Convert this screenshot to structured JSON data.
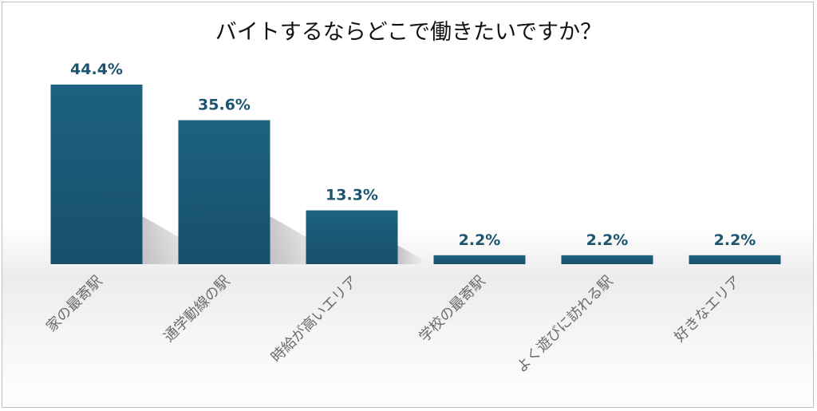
{
  "chart_data": {
    "type": "bar",
    "title": "バイトするならどこで働きたいですか？",
    "categories": [
      "家の最寄駅",
      "通学動線の駅",
      "時給が高いエリア",
      "学校の最寄駅",
      "よく遊びに訪れる駅",
      "好きなエリア"
    ],
    "values": [
      44.4,
      35.6,
      13.3,
      2.2,
      2.2,
      2.2
    ],
    "value_labels": [
      "44.4%",
      "35.6%",
      "13.3%",
      "2.2%",
      "2.2%",
      "2.2%"
    ],
    "xlabel": "",
    "ylabel": "",
    "ylim": [
      0,
      50
    ],
    "grid": false,
    "legend": "none",
    "bar_color": "#1a5a78"
  }
}
